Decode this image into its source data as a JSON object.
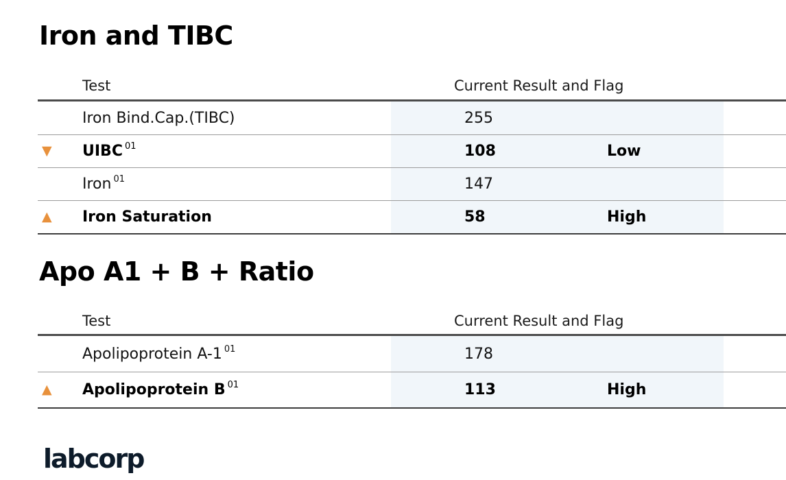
{
  "colors": {
    "flag_triangle": "#E8913C",
    "result_column_background": "#F1F6FA",
    "header_rule": "#4A4A4A",
    "row_rule": "#9B9B9B",
    "table_bottom_rule": "#3D3D3D",
    "logo": "#0D1B2A"
  },
  "sections": [
    {
      "title": "Iron and TIBC",
      "columns": {
        "test": "Test",
        "result": "Current Result and Flag"
      },
      "rows": [
        {
          "icon": "",
          "glyph": "",
          "test": "Iron Bind.Cap.(TIBC)",
          "sup": "",
          "result": "255",
          "flag": ""
        },
        {
          "icon": "triangle-down-icon",
          "glyph": "▼",
          "test": "UIBC",
          "sup": "01",
          "result": "108",
          "flag": "Low"
        },
        {
          "icon": "",
          "glyph": "",
          "test": "Iron",
          "sup": "01",
          "result": "147",
          "flag": ""
        },
        {
          "icon": "triangle-up-icon",
          "glyph": "▲",
          "test": "Iron Saturation",
          "sup": "",
          "result": "58",
          "flag": "High"
        }
      ]
    },
    {
      "title": "Apo A1 + B + Ratio",
      "columns": {
        "test": "Test",
        "result": "Current Result and Flag"
      },
      "rows": [
        {
          "icon": "",
          "glyph": "",
          "test": "Apolipoprotein A-1",
          "sup": "01",
          "result": "178",
          "flag": ""
        },
        {
          "icon": "triangle-up-icon",
          "glyph": "▲",
          "test": "Apolipoprotein B",
          "sup": "01",
          "result": "113",
          "flag": "High"
        }
      ]
    }
  ],
  "footer": {
    "logo": "labcorp"
  }
}
